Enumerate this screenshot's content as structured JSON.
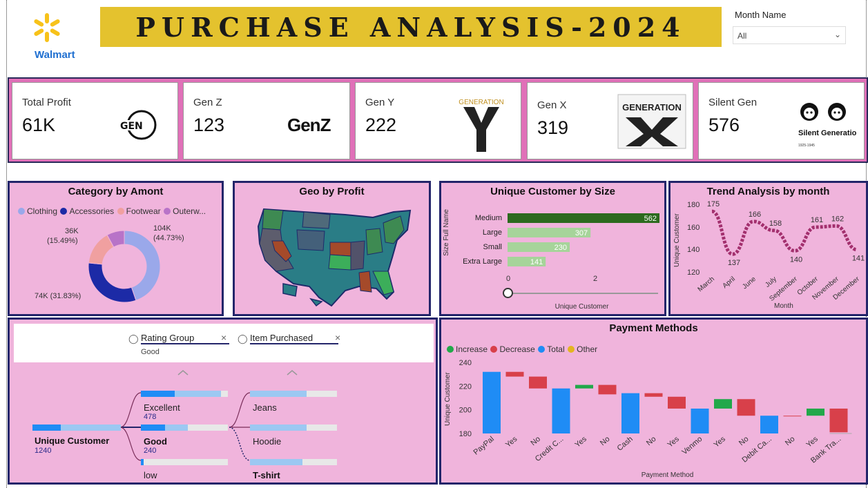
{
  "header": {
    "logo_text": "Walmart",
    "title": "PURCHASE ANALYSIS-2024",
    "slicer_label": "Month Name",
    "slicer_value": "All"
  },
  "kpis": [
    {
      "label": "Total Profit",
      "value": "61K",
      "badge": "GEN"
    },
    {
      "label": "Gen Z",
      "value": "123",
      "badge": "GenZ"
    },
    {
      "label": "Gen Y",
      "value": "222",
      "badge": "GENERATION"
    },
    {
      "label": "Gen X",
      "value": "319",
      "badge": "GENERATION"
    },
    {
      "label": "Silent Gen",
      "value": "576",
      "badge": "Silent Generation",
      "badge_sub": "1925-1945"
    }
  ],
  "colors": {
    "clothing": "#9aa8ea",
    "accessories": "#1c2aa6",
    "footwear": "#f0a0a0",
    "outerwear": "#b873c8",
    "bar_dark": "#2c6a1e",
    "bar_light": "#a6d49a",
    "trend": "#a3306e",
    "increase": "#22a84a",
    "decrease": "#d8404a",
    "total": "#1f8cf5",
    "other": "#e4b420"
  },
  "category": {
    "title": "Category by Amont",
    "legend": [
      "Clothing",
      "Accessories",
      "Footwear",
      "Outerw..."
    ],
    "labels": {
      "clothing": "104K",
      "clothing_pct": "(44.73%)",
      "accessories": "74K (31.83%)",
      "footwear": "36K",
      "footwear_pct": "(15.49%)"
    }
  },
  "geo": {
    "title": "Geo by Profit"
  },
  "size": {
    "title": "Unique Customer by Size",
    "ylabel": "Size Full Name",
    "xlabel": "Unique Customer",
    "axis": [
      "0",
      "2"
    ]
  },
  "trend": {
    "title": "Trend Analysis by month",
    "ylabel": "Unique Customer",
    "xlabel": "Month",
    "yticks": [
      "180",
      "160",
      "140",
      "120"
    ]
  },
  "tree": {
    "filter1": "Rating Group",
    "filter1_value": "Good",
    "filter2": "Item Purchased",
    "root_label": "Unique Customer",
    "root_value": "1240",
    "nodes": [
      {
        "label": "Excellent",
        "value": "478"
      },
      {
        "label": "Good",
        "value": "240"
      },
      {
        "label": "low",
        "value": ""
      }
    ],
    "items": [
      "Jeans",
      "Hoodie",
      "T-shirt"
    ]
  },
  "payment": {
    "title": "Payment Methods",
    "legend": [
      "Increase",
      "Decrease",
      "Total",
      "Other"
    ],
    "ylabel": "Unique Customer",
    "xlabel": "Payment Method"
  },
  "chart_data": [
    {
      "type": "pie",
      "title": "Category by Amont",
      "categories": [
        "Clothing",
        "Accessories",
        "Footwear",
        "Outerwear"
      ],
      "values": [
        104,
        74,
        36,
        18.5
      ],
      "labels": [
        "104K (44.73%)",
        "74K (31.83%)",
        "36K (15.49%)",
        ""
      ]
    },
    {
      "type": "bar",
      "title": "Unique Customer by Size",
      "categories": [
        "Medium",
        "Large",
        "Small",
        "Extra Large"
      ],
      "values": [
        562,
        307,
        230,
        141
      ],
      "xlabel": "Unique Customer",
      "ylabel": "Size Full Name"
    },
    {
      "type": "line",
      "title": "Trend Analysis by month",
      "categories": [
        "March",
        "April",
        "June",
        "July",
        "September",
        "October",
        "November",
        "December"
      ],
      "values": [
        175,
        137,
        166,
        158,
        140,
        161,
        162,
        141
      ],
      "ylim": [
        120,
        180
      ],
      "xlabel": "Month",
      "ylabel": "Unique Customer"
    },
    {
      "type": "bar",
      "title": "Payment Methods",
      "categories": [
        "PayPal",
        "Yes",
        "No",
        "Credit C...",
        "Yes",
        "No",
        "Cash",
        "No",
        "Yes",
        "Venmo",
        "Yes",
        "No",
        "Debit Ca...",
        "No",
        "Yes",
        "Bank Tra..."
      ],
      "series": [
        {
          "name": "Total",
          "values": [
            232,
            null,
            null,
            218,
            null,
            null,
            214,
            null,
            null,
            201,
            null,
            null,
            195,
            null,
            null,
            null
          ]
        },
        {
          "name": "Increase",
          "values": [
            null,
            null,
            null,
            null,
            3,
            null,
            null,
            null,
            null,
            null,
            8,
            null,
            null,
            null,
            6,
            null
          ]
        },
        {
          "name": "Decrease",
          "values": [
            null,
            4,
            10,
            null,
            null,
            8,
            null,
            3,
            10,
            null,
            null,
            14,
            null,
            null,
            null,
            20
          ]
        }
      ],
      "ylim": [
        180,
        240
      ],
      "xlabel": "Payment Method",
      "ylabel": "Unique Customer"
    }
  ]
}
